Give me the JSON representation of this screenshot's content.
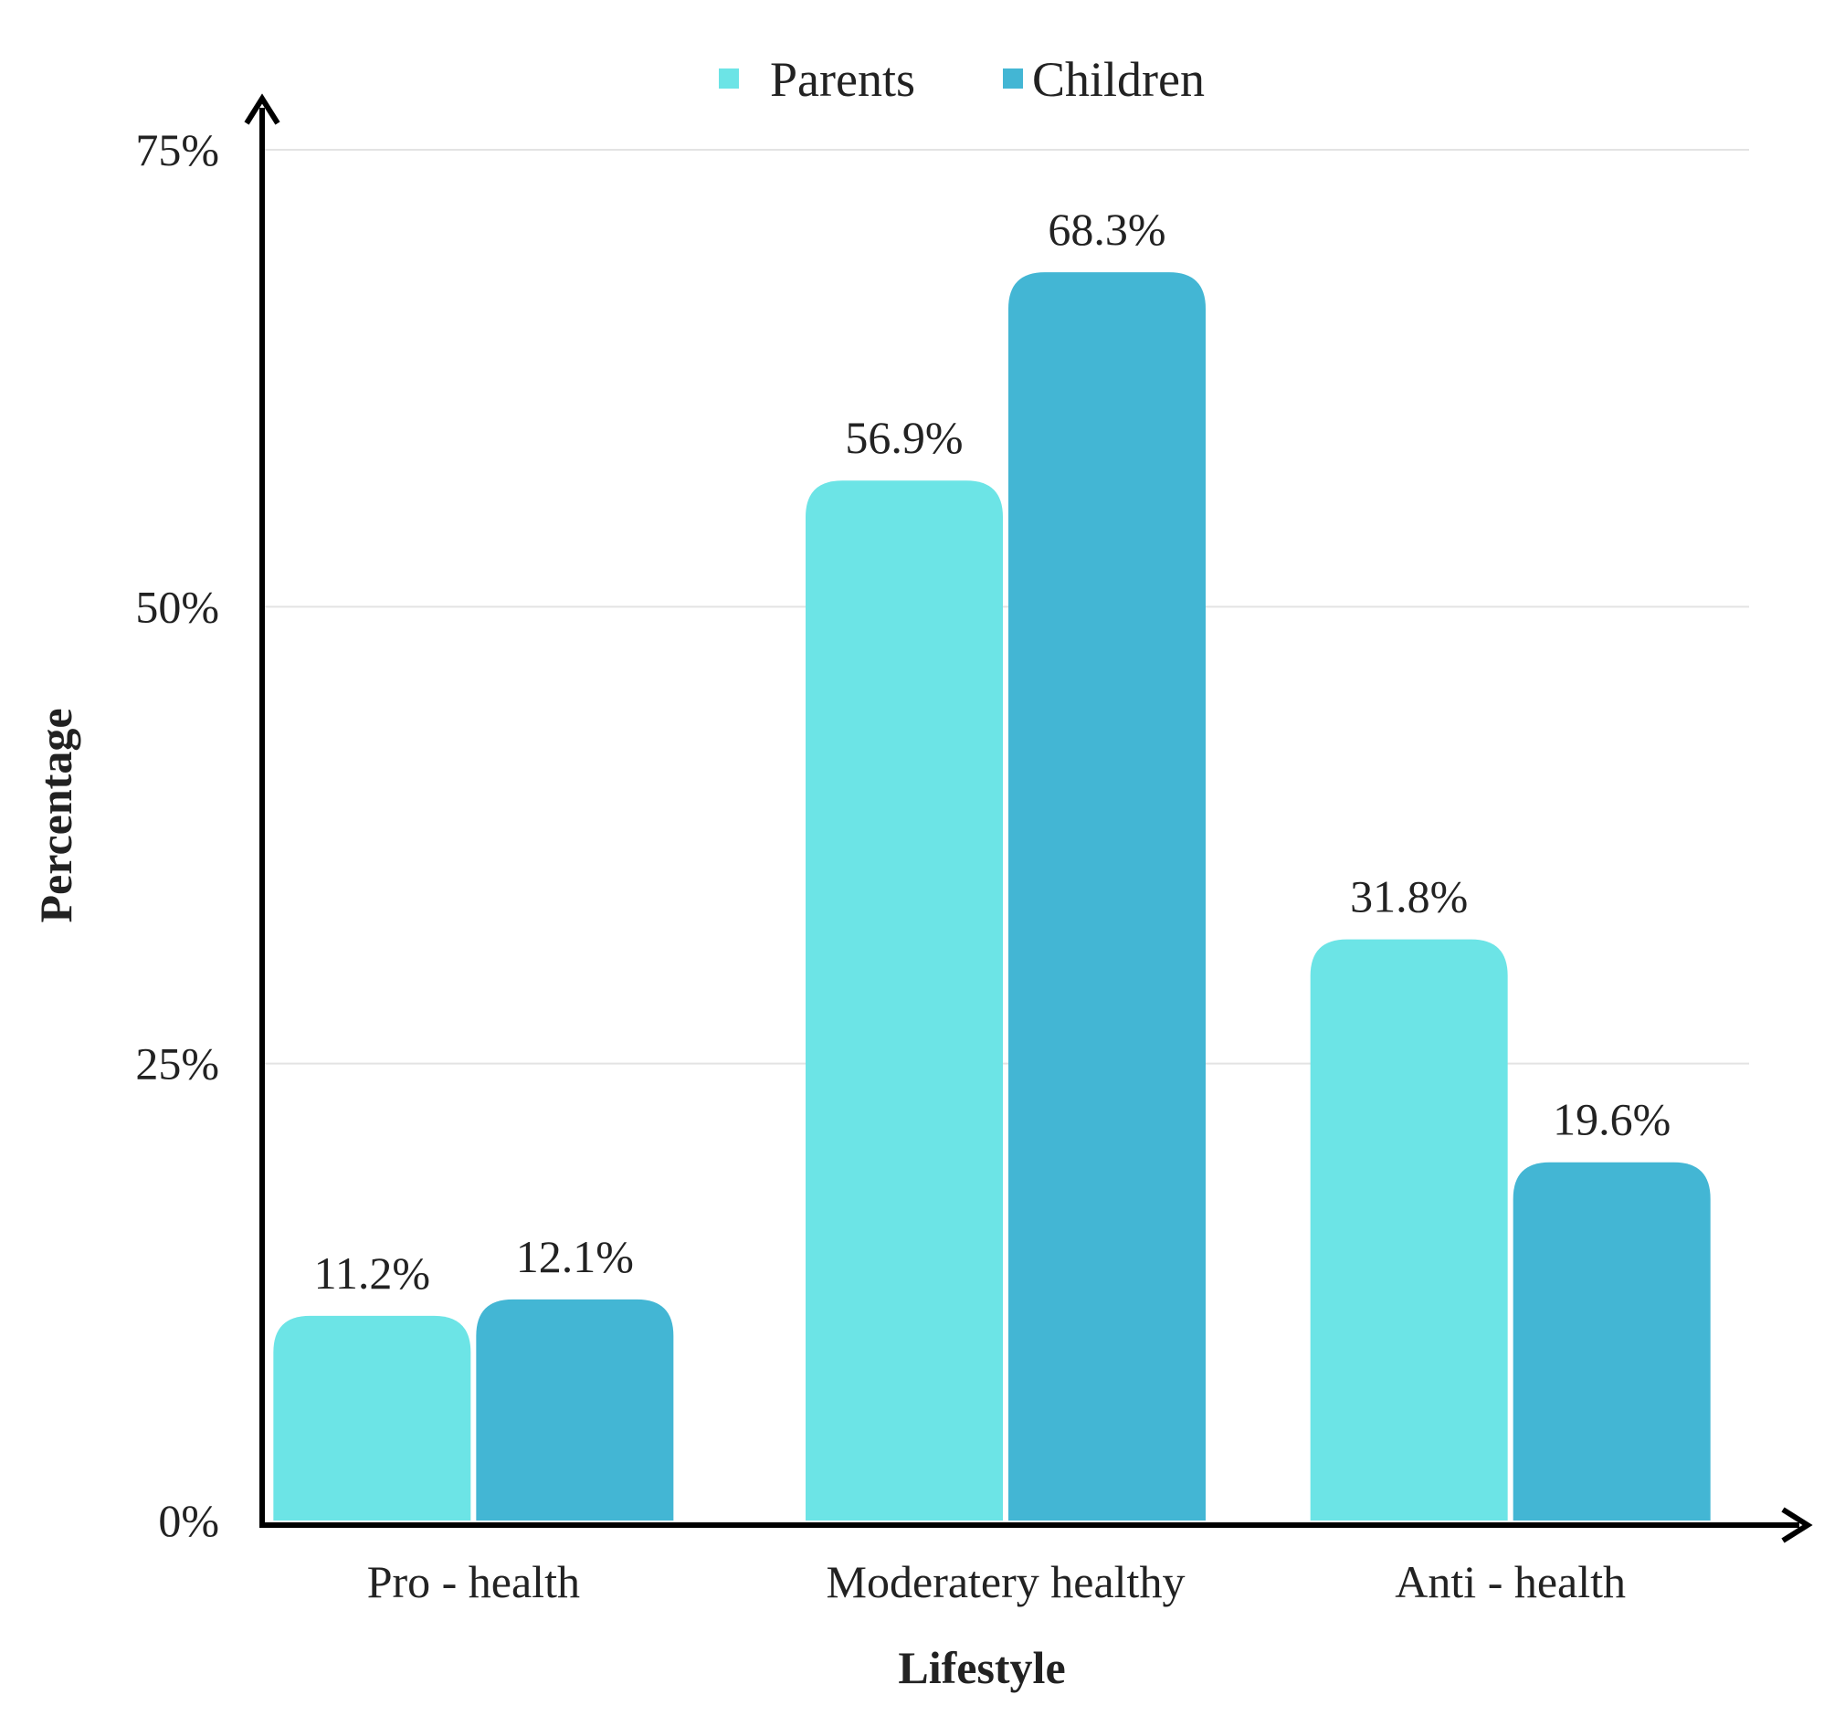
{
  "chart_data": {
    "type": "bar",
    "title": "",
    "xlabel": "Lifestyle",
    "ylabel": "Percentage",
    "categories": [
      "Pro - health",
      "Moderatery healthy",
      "Anti - health"
    ],
    "series": [
      {
        "name": "Parents",
        "color": "#6ce4e6",
        "values": [
          11.2,
          56.9,
          31.8
        ],
        "labels": [
          "11.2%",
          "56.9%",
          "31.8%"
        ]
      },
      {
        "name": "Children",
        "color": "#43b6d4",
        "values": [
          12.1,
          68.3,
          19.6
        ],
        "labels": [
          "12.1%",
          "68.3%",
          "19.6%"
        ]
      }
    ],
    "ylim": [
      0,
      75
    ],
    "yticks": [
      0,
      25,
      50,
      75
    ],
    "ytick_labels": [
      "0%",
      "25%",
      "50%",
      "75%"
    ],
    "grid": true,
    "legend_position": "top-center"
  }
}
